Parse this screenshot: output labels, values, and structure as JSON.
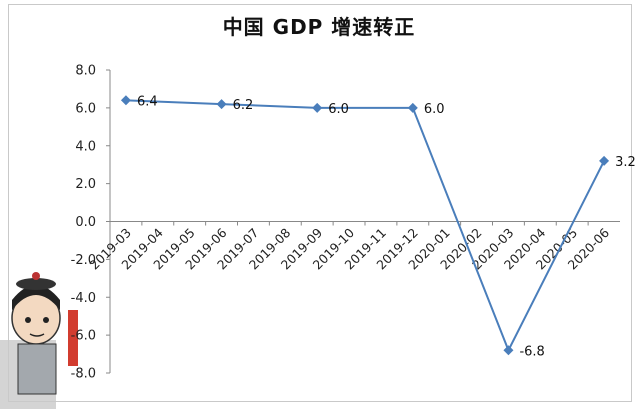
{
  "chart_data": {
    "type": "line",
    "title": "中国 GDP 增速转正",
    "xlabel": "",
    "ylabel": "",
    "categories": [
      "2019-03",
      "2019-04",
      "2019-05",
      "2019-06",
      "2019-07",
      "2019-08",
      "2019-09",
      "2019-10",
      "2019-11",
      "2019-12",
      "2020-01",
      "2020-02",
      "2020-03",
      "2020-04",
      "2020-05",
      "2020-06"
    ],
    "series": [
      {
        "points": [
          {
            "x": "2019-03",
            "y": 6.4
          },
          {
            "x": "2019-06",
            "y": 6.2
          },
          {
            "x": "2019-09",
            "y": 6.0
          },
          {
            "x": "2019-12",
            "y": 6.0
          },
          {
            "x": "2020-03",
            "y": -6.8
          },
          {
            "x": "2020-06",
            "y": 3.2
          }
        ],
        "data_labels": [
          "6.4",
          "6.2",
          "6.0",
          "6.0",
          "-6.8",
          "3.2"
        ]
      }
    ],
    "ylim": [
      -8.0,
      8.0
    ],
    "yticks": [
      "8.0",
      "6.0",
      "4.0",
      "2.0",
      "0.0",
      "-2.0",
      "-4.0",
      "-6.0",
      "-8.0"
    ],
    "ytick_values": [
      8,
      6,
      4,
      2,
      0,
      -2,
      -4,
      -6,
      -8
    ],
    "grid": false,
    "legend": "none",
    "line_color": "#4a7ebb",
    "marker": "diamond"
  }
}
